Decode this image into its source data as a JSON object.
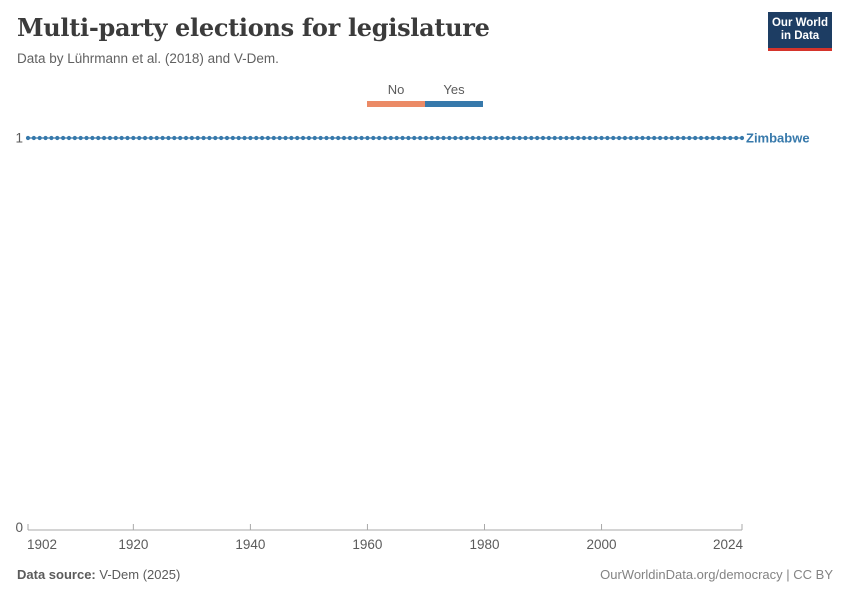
{
  "header": {
    "title": "Multi-party elections for legislature",
    "subtitle": "Data by Lührmann et al. (2018) and V-Dem.",
    "logo": {
      "line1": "Our World",
      "line2": "in Data"
    }
  },
  "legend": {
    "items": [
      {
        "label": "No",
        "value": 0,
        "color": "#eb8a66"
      },
      {
        "label": "Yes",
        "value": 1,
        "color": "#3779ab"
      }
    ]
  },
  "chart_data": {
    "type": "line",
    "title": "Multi-party elections for legislature",
    "series": [
      {
        "name": "Zimbabwe",
        "color": "#3779ab",
        "x_start": 1902,
        "x_end": 2024,
        "x_step": 1,
        "constant_value": 1,
        "description": "value = 1 (Yes) for every year from 1902 through 2024"
      }
    ],
    "value_labels": {
      "0": "No",
      "1": "Yes"
    },
    "x_ticks": [
      1902,
      1920,
      1940,
      1960,
      1980,
      2000,
      2024
    ],
    "y_ticks": [
      0,
      1
    ],
    "xlim": [
      1902,
      2024
    ],
    "ylim": [
      0,
      1
    ],
    "grid": false,
    "marker": "circle",
    "legend_position": "top-center",
    "xlabel": "",
    "ylabel": ""
  },
  "footer": {
    "source_label": "Data source:",
    "source_value": " V-Dem (2025)",
    "credit": "OurWorldinData.org/democracy | CC BY"
  },
  "colors": {
    "series_blue": "#3779ab",
    "no_orange": "#eb8a66",
    "axis_line": "#a8a8a8",
    "axis_text": "#5b5b5b",
    "title_text": "#3b3b3b",
    "logo_navy": "#1d3d63",
    "logo_red": "#d5342b"
  }
}
